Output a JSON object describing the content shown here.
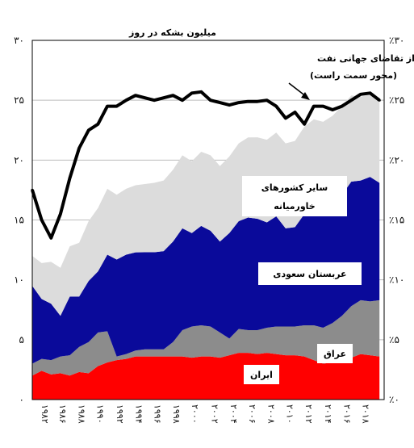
{
  "chart_data": {
    "type": "area",
    "ylabel": "میلیون بشکه در روز",
    "ylim": [
      0,
      30
    ],
    "y2lim": [
      0,
      30
    ],
    "grid": true,
    "xlim": [
      1982,
      2019.5
    ],
    "y_ticks": [
      "۰",
      "۵",
      "۱۰",
      "۱۵",
      "۲۰",
      "۲۵",
      "۳۰"
    ],
    "y_tick_values": [
      0,
      5,
      10,
      15,
      20,
      25,
      30
    ],
    "y2_ticks": [
      "٪۰",
      "٪۵",
      "٪۱۰",
      "٪۱۵",
      "٪۲۰",
      "٪۲۵",
      "٪۳۰"
    ],
    "x_ticks": [
      "۱۹۸۲",
      "۱۹۸۶",
      "۱۹۸۸",
      "۱۹۹۰",
      "۱۹۹۲",
      "۱۹۹۴",
      "۱۹۹۶",
      "۱۹۹۸",
      "۲۰۰۰",
      "۲۰۰۲",
      "۲۰۰۴",
      "۲۰۰۶",
      "۲۰۰۸",
      "۲۰۱۰",
      "۲۰۱۲",
      "۲۰۱۴",
      "۲۰۱۶",
      "۲۰۱۸"
    ],
    "x_tick_values": [
      1983.3,
      1985.2,
      1987.2,
      1989.2,
      1991.3,
      1993.3,
      1995.3,
      1997.3,
      1999.3,
      2001.4,
      2003.4,
      2005.4,
      2007.4,
      2009.4,
      2011.4,
      2013.5,
      2015.5,
      2017.5
    ],
    "x": [
      1982,
      1983,
      1984,
      1985,
      1986,
      1987,
      1988,
      1989,
      1990,
      1991,
      1992,
      1993,
      1994,
      1995,
      1996,
      1997,
      1998,
      1999,
      2000,
      2001,
      2002,
      2003,
      2004,
      2005,
      2006,
      2007,
      2008,
      2009,
      2010,
      2011,
      2012,
      2013,
      2014,
      2015,
      2016,
      2017,
      2018,
      2019
    ],
    "series": [
      {
        "name": "ایران",
        "color": "#ff0000",
        "values": [
          2.0,
          2.4,
          2.1,
          2.2,
          2.0,
          2.3,
          2.2,
          2.8,
          3.1,
          3.3,
          3.4,
          3.6,
          3.6,
          3.6,
          3.6,
          3.6,
          3.6,
          3.5,
          3.6,
          3.6,
          3.5,
          3.7,
          3.9,
          3.9,
          3.8,
          3.9,
          3.8,
          3.7,
          3.7,
          3.6,
          3.3,
          3.0,
          3.1,
          3.1,
          3.5,
          3.8,
          3.7,
          3.6
        ]
      },
      {
        "name": "عراق",
        "color": "#8c8c8c",
        "values": [
          1.0,
          1.0,
          1.2,
          1.4,
          1.7,
          2.1,
          2.6,
          2.8,
          2.6,
          0.3,
          0.4,
          0.5,
          0.6,
          0.6,
          0.6,
          1.2,
          2.2,
          2.6,
          2.6,
          2.5,
          2.1,
          1.4,
          2.0,
          1.9,
          2.0,
          2.1,
          2.3,
          2.4,
          2.4,
          2.6,
          2.9,
          3.0,
          3.3,
          3.9,
          4.3,
          4.5,
          4.5,
          4.7
        ]
      },
      {
        "name": "عربستان سعودی",
        "color": "#0a0a9a",
        "values": [
          6.5,
          5.0,
          4.7,
          3.4,
          4.9,
          4.2,
          5.1,
          5.1,
          6.4,
          8.1,
          8.3,
          8.2,
          8.1,
          8.1,
          8.2,
          8.4,
          8.5,
          7.8,
          8.3,
          8.0,
          7.6,
          8.8,
          9.0,
          9.4,
          9.3,
          8.8,
          9.2,
          8.2,
          8.3,
          9.3,
          9.8,
          9.7,
          9.7,
          10.1,
          10.4,
          10.0,
          10.4,
          9.8
        ]
      },
      {
        "name": "سایر کشورهای خاورمیانه",
        "color": "#dcdcdc",
        "values": [
          2.5,
          3.0,
          3.5,
          4.0,
          4.2,
          4.5,
          5.0,
          5.3,
          5.5,
          5.4,
          5.5,
          5.6,
          5.7,
          5.8,
          5.9,
          6.0,
          6.1,
          6.0,
          6.2,
          6.3,
          6.3,
          6.4,
          6.5,
          6.7,
          6.8,
          6.9,
          7.0,
          7.1,
          7.2,
          7.3,
          7.4,
          7.5,
          7.6,
          7.4,
          7.2,
          7.0,
          6.9,
          7.0
        ]
      }
    ],
    "share_line": {
      "name": "سهم از تقاضای جهانی نفت",
      "axis_label": "(محور سمت راست)",
      "unit": "%",
      "values": [
        17.5,
        15.0,
        13.5,
        15.5,
        18.5,
        21.0,
        22.5,
        23.0,
        24.5,
        24.5,
        25.0,
        25.4,
        25.2,
        25.0,
        25.2,
        25.4,
        25.0,
        25.6,
        25.7,
        25.0,
        24.8,
        24.6,
        24.8,
        24.9,
        24.9,
        25.0,
        24.5,
        23.5,
        24.0,
        23.0,
        24.5,
        24.5,
        24.2,
        24.5,
        25.0,
        25.5,
        25.6,
        25.0
      ]
    }
  }
}
